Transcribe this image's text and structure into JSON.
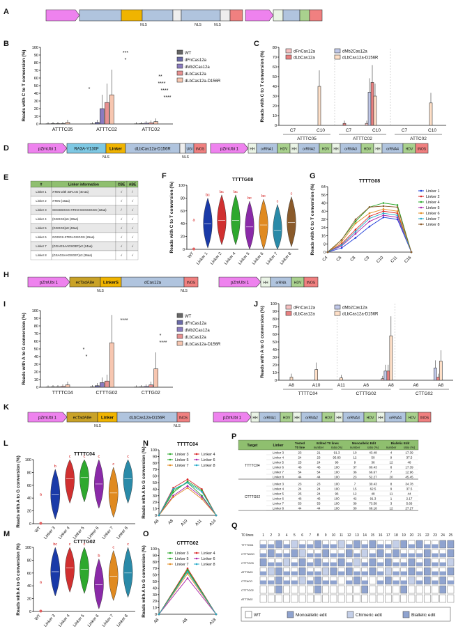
{
  "panels": {
    "A": "A",
    "B": "B",
    "C": "C",
    "D": "D",
    "E": "E",
    "F": "F",
    "G": "G",
    "H": "H",
    "I": "I",
    "J": "J",
    "K": "K",
    "L": "L",
    "M": "M",
    "N": "N",
    "O": "O",
    "P": "P",
    "Q": "Q"
  },
  "construct_A": {
    "nls": "NLS"
  },
  "construct_D": {
    "promoter": "pZmUbi 1",
    "deaminase": "RA3A-Y130F",
    "linker": "Linker",
    "cas": "dLbCas12a-D156R",
    "ugi": "UGI",
    "terminator": "tNOS",
    "promoter2": "pZmUbi 1",
    "hh": "HH",
    "hdv": "HDV",
    "crrnas": [
      "orRNA1",
      "orRNA2",
      "orRNA3",
      "orRNA4"
    ],
    "nls": "NLS"
  },
  "construct_H": {
    "promoter": "pZmUbi 1",
    "deaminase": "ecTadA8e",
    "linker": "LinkerS",
    "cas": "dCas12a",
    "terminator": "tNOS",
    "promoter2": "pZmUbi 1",
    "hh": "HH",
    "crrna": "orRNA",
    "hdv": "HDV",
    "nls": "NLS"
  },
  "construct_K": {
    "promoter": "pZmUbi 1",
    "deaminase": "ecTadA8e",
    "linker": "Linker",
    "cas": "dLbCas12a-D156R",
    "terminator": "tNOS",
    "promoter2": "pZmUbi 1",
    "hh": "HH",
    "hdv": "HDV",
    "crrnas": [
      "orRNA1",
      "orRNA2",
      "orRNA3",
      "orRNA4"
    ],
    "nls": "NLS"
  },
  "legend_B": [
    "WT",
    "dFnCas12a",
    "dMb2Cas12a",
    "dLbCas12a",
    "dLbCas12a-D156R"
  ],
  "legend_C": [
    "dFnCas12a",
    "dMb2Cas12a",
    "dLbCas12a",
    "dLbCas12a-D156R"
  ],
  "ylabel_CT": "Reads with C to T conversion (%)",
  "ylabel_AG": "Reads with A to G conversion (%)",
  "sig": {
    "s1": "*",
    "s3": "***",
    "s4": "****",
    "s2": "**"
  },
  "linker_table": {
    "headers": [
      "#",
      "Linker information",
      "CBE",
      "ABE"
    ],
    "rows": [
      [
        "Linker 1",
        "XTEN with 3xFLAG (40 aa)",
        "√",
        "/"
      ],
      [
        "Linker 2",
        "XTEN (16aa)",
        "√",
        "√"
      ],
      [
        "Linker 3",
        "SGGSSGGS-XTEN-SGGSSGGS (32aa)",
        "/",
        "√"
      ],
      [
        "Linker 4",
        "(GGGGS)x6 (30aa)",
        "√",
        "√"
      ],
      [
        "Linker 5",
        "(GGGGS)x8 (40aa)",
        "√",
        "√"
      ],
      [
        "Linker 6",
        "GGGGS-XTEN-GGGGS (26aa)",
        "√",
        "√"
      ],
      [
        "Linker 7",
        "(GGAGSAAGSGEF)x2 (24aa)",
        "√",
        "√"
      ],
      [
        "Linker 8",
        "(GSAGSAAGSGEF)x3 (36aa)",
        "√",
        "√"
      ]
    ]
  },
  "G_title": "TTTTG08",
  "G_legend": [
    "Linker 1",
    "Linker 2",
    "Linker 4",
    "Linker 5",
    "Linker 6",
    "Linker 7",
    "Linker 8"
  ],
  "N_title": "TTTTC04",
  "O_title": "CTTTG02",
  "NO_legend": [
    "Linker 3",
    "Linker 4",
    "Linker 5",
    "Linker 6",
    "Linker 7",
    "Linker 8"
  ],
  "table_P": {
    "headers": [
      "Target",
      "Linker",
      "Tested T0 line",
      "Edited T0 lines number",
      "Edited T0 lines ratio (%)",
      "Monoallelic Edit number",
      "Monoallelic Edit ratio (%)",
      "Biallelic Edit number",
      "Biallelic Edit ratio (%)"
    ],
    "head_top": {
      "tested": "Tested",
      "t0": "T0 line",
      "edited": "Edited T0 lines",
      "mono": "Monoallelic Edit",
      "bi": "Biallelic Edit",
      "number": "number",
      "ratio": "ratio (%)"
    },
    "groups": [
      {
        "target": "TTTTC04",
        "rows": [
          [
            "Linker 3",
            "23",
            "21",
            "91.3",
            "10",
            "43.48",
            "4",
            "17.39"
          ],
          [
            "Linker 4",
            "24",
            "23",
            "95.83",
            "12",
            "50",
            "9",
            "37.5"
          ],
          [
            "Linker 5",
            "25",
            "24",
            "96",
            "9",
            "36",
            "12",
            "48"
          ],
          [
            "Linker 6",
            "46",
            "46",
            "100",
            "37",
            "80.43",
            "8",
            "17.39"
          ],
          [
            "Linker 7",
            "54",
            "54",
            "100",
            "36",
            "66.67",
            "7",
            "12.96"
          ],
          [
            "Linker 8",
            "44",
            "44",
            "100",
            "23",
            "52.27",
            "20",
            "45.45"
          ]
        ]
      },
      {
        "target": "CTTTG02",
        "rows": [
          [
            "Linker 3",
            "23",
            "23",
            "100",
            "7",
            "30.43",
            "8",
            "34.78"
          ],
          [
            "Linker 4",
            "24",
            "24",
            "100",
            "15",
            "62.5",
            "9",
            "37.5"
          ],
          [
            "Linker 5",
            "25",
            "24",
            "96",
            "12",
            "48",
            "11",
            "44"
          ],
          [
            "Linker 6",
            "46",
            "46",
            "100",
            "42",
            "91.3",
            "1",
            "2.17"
          ],
          [
            "Linker 7",
            "53",
            "53",
            "100",
            "39",
            "73.58",
            "3",
            "5.66"
          ],
          [
            "Linker 8",
            "44",
            "44",
            "100",
            "30",
            "68.18",
            "12",
            "27.27"
          ]
        ]
      }
    ]
  },
  "Q": {
    "t0_label": "T0 lines",
    "cols": [
      "1",
      "2",
      "3",
      "4",
      "5",
      "6",
      "7",
      "8",
      "9",
      "10",
      "11",
      "12",
      "13",
      "14",
      "15",
      "16",
      "17",
      "18",
      "19",
      "20",
      "21",
      "22",
      "23",
      "24",
      "25"
    ],
    "rows": [
      "TTTTG04",
      "CTTTAGO",
      "CTTTG03",
      "ATTTA03",
      "CTTACO",
      "CTTTG02",
      "ATTTA02"
    ],
    "legend": [
      "WT",
      "Monoallelic edit",
      "Chimeric edit",
      "Biallelic edit"
    ]
  },
  "chart_data": [
    {
      "panel": "B",
      "type": "bar",
      "categories": [
        "ATTTC05",
        "ATTTC02",
        "ATTC02"
      ],
      "series": [
        {
          "name": "WT",
          "values": [
            0.3,
            0.3,
            0.3
          ]
        },
        {
          "name": "dFnCas12a",
          "values": [
            0.5,
            2,
            0.5
          ]
        },
        {
          "name": "dMb2Cas12a",
          "values": [
            0.5,
            20,
            1
          ]
        },
        {
          "name": "dLbCas12a",
          "values": [
            0.5,
            28,
            1.5
          ]
        },
        {
          "name": "dLbCas12a-D156R",
          "values": [
            2,
            38,
            3
          ]
        }
      ],
      "ylabel": "Reads with C to T conversion (%)",
      "ylim": [
        0,
        100
      ],
      "yticks": [
        0,
        10,
        20,
        30,
        40,
        50,
        60,
        70,
        80,
        90,
        100
      ]
    },
    {
      "panel": "C",
      "type": "bar",
      "groups": [
        "ATTTC05",
        "ATTTC02",
        "ATTC02"
      ],
      "categories": [
        "C7",
        "C10",
        "C7",
        "C10",
        "C7",
        "C10"
      ],
      "series": [
        {
          "name": "dFnCas12a",
          "values": [
            0,
            0,
            0,
            2,
            0,
            0
          ]
        },
        {
          "name": "dMb2Cas12a",
          "values": [
            0,
            0,
            0,
            34,
            0,
            0
          ]
        },
        {
          "name": "dLbCas12a",
          "values": [
            0,
            0,
            2,
            44,
            0,
            0
          ]
        },
        {
          "name": "dLbCas12a-D156R",
          "values": [
            0,
            40,
            0,
            30,
            0,
            23
          ]
        }
      ],
      "ylabel": "Reads with C to T conversion (%)",
      "ylim": [
        0,
        80
      ],
      "yticks": [
        0,
        10,
        20,
        30,
        40,
        50,
        60,
        70,
        80
      ]
    },
    {
      "panel": "F",
      "type": "violin",
      "title": "TTTTG08",
      "categories": [
        "WT",
        "Linker 1",
        "Linker 2",
        "Linker 4",
        "Linker 5",
        "Linker 6",
        "Linker 7",
        "Linker 8"
      ],
      "medians": [
        0.5,
        40,
        45,
        45,
        35,
        38,
        30,
        42
      ],
      "letters": [
        "a",
        "bc",
        "bc",
        "bc",
        "bc",
        "bc",
        "c",
        "c"
      ],
      "ylim": [
        0,
        100
      ],
      "yticks": [
        0,
        20,
        40,
        60,
        80,
        100
      ]
    },
    {
      "panel": "G",
      "type": "line",
      "title": "TTTTG08",
      "x": [
        "C4",
        "C6",
        "C8",
        "C9",
        "C10",
        "C11",
        "C16"
      ],
      "series": [
        {
          "name": "Linker 1",
          "values": [
            0,
            4,
            14,
            25,
            34,
            32,
            0
          ]
        },
        {
          "name": "Linker 2",
          "values": [
            0,
            8,
            22,
            35,
            40,
            38,
            0
          ]
        },
        {
          "name": "Linker 4",
          "values": [
            0,
            12,
            30,
            44,
            48,
            46,
            0
          ]
        },
        {
          "name": "Linker 5",
          "values": [
            0,
            6,
            18,
            30,
            36,
            34,
            0
          ]
        },
        {
          "name": "Linker 6",
          "values": [
            0,
            10,
            28,
            38,
            42,
            40,
            0
          ]
        },
        {
          "name": "Linker 7",
          "values": [
            0,
            7,
            20,
            33,
            38,
            36,
            0
          ]
        },
        {
          "name": "Linker 8",
          "values": [
            0,
            12,
            32,
            44,
            45,
            44,
            0
          ]
        }
      ],
      "ylim": [
        0,
        64
      ],
      "yticks": [
        0,
        8,
        16,
        24,
        32,
        40,
        48,
        56,
        64
      ]
    },
    {
      "panel": "I",
      "type": "bar",
      "categories": [
        "TTTTC04",
        "CTTTG02",
        "CTTG02"
      ],
      "series": [
        {
          "name": "WT",
          "values": [
            0.3,
            0.5,
            0.3
          ]
        },
        {
          "name": "dFnCas12a",
          "values": [
            0.5,
            2,
            0.5
          ]
        },
        {
          "name": "dMb2Cas12a",
          "values": [
            0.5,
            6,
            1
          ]
        },
        {
          "name": "dLbCas12a",
          "values": [
            1,
            8,
            3
          ]
        },
        {
          "name": "dLbCas12a-D156R",
          "values": [
            3,
            58,
            24
          ]
        }
      ],
      "ylabel": "Reads with A to G conversion (%)",
      "ylim": [
        0,
        100
      ],
      "yticks": [
        0,
        10,
        20,
        30,
        40,
        50,
        60,
        70,
        80,
        90,
        100
      ]
    },
    {
      "panel": "J",
      "type": "bar",
      "groups": [
        "TTTTC04",
        "CTTTG02",
        "CTTG02"
      ],
      "categories": [
        "A8",
        "A10",
        "A11",
        "A6",
        "A8",
        "A6",
        "A8"
      ],
      "series": [
        {
          "name": "dFnCas12a",
          "values": [
            0,
            0,
            0,
            0,
            2,
            0,
            0
          ]
        },
        {
          "name": "dMb2Cas12a",
          "values": [
            0,
            0,
            0,
            0,
            12,
            0,
            16
          ]
        },
        {
          "name": "dLbCas12a",
          "values": [
            0,
            0,
            0,
            0,
            12,
            0,
            4
          ]
        },
        {
          "name": "dLbCas12a-D156R",
          "values": [
            4,
            14,
            3,
            0,
            58,
            0,
            25
          ]
        }
      ],
      "ylabel": "Reads with A to G conversion (%)",
      "ylim": [
        0,
        100
      ],
      "yticks": [
        0,
        10,
        20,
        30,
        40,
        50,
        60,
        70,
        80,
        90,
        100
      ]
    },
    {
      "panel": "L",
      "type": "violin",
      "title": "TTTTC04",
      "categories": [
        "WT",
        "Linker 3",
        "Linker 4",
        "Linker 5",
        "Linker 6",
        "Linker 7",
        "Linker 8"
      ],
      "medians": [
        0.5,
        45,
        70,
        72,
        62,
        48,
        70
      ],
      "letters": [
        "a",
        "b",
        "c",
        "c",
        "c",
        "c",
        "c"
      ],
      "ylim": [
        0,
        100
      ],
      "yticks": [
        0,
        20,
        40,
        60,
        80,
        100
      ]
    },
    {
      "panel": "M",
      "type": "violin",
      "title": "CTTTG02",
      "categories": [
        "WT",
        "Linker 3",
        "Linker 4",
        "Linker 5",
        "Linker 6",
        "Linker 7",
        "Linker 8"
      ],
      "medians": [
        0.5,
        62,
        68,
        66,
        42,
        55,
        60
      ],
      "letters": [
        "a",
        "bc",
        "c",
        "c",
        "b",
        "c",
        "c"
      ],
      "ylim": [
        0,
        100
      ],
      "yticks": [
        0,
        20,
        40,
        60,
        80,
        100
      ]
    },
    {
      "panel": "N",
      "type": "line",
      "title": "TTTTC04",
      "x": [
        "A6",
        "A8",
        "A10",
        "A11",
        "A14"
      ],
      "series": [
        {
          "name": "Linker 3",
          "values": [
            0,
            38,
            50,
            30,
            0
          ]
        },
        {
          "name": "Linker 4",
          "values": [
            0,
            42,
            55,
            40,
            0
          ]
        },
        {
          "name": "Linker 5",
          "values": [
            0,
            35,
            52,
            38,
            0
          ]
        },
        {
          "name": "Linker 6",
          "values": [
            0,
            30,
            45,
            28,
            0
          ]
        },
        {
          "name": "Linker 7",
          "values": [
            0,
            28,
            42,
            25,
            0
          ]
        },
        {
          "name": "Linker 8",
          "values": [
            0,
            40,
            50,
            36,
            0
          ]
        }
      ],
      "ylim": [
        0,
        100
      ],
      "yticks": [
        0,
        10,
        20,
        30,
        40,
        50,
        60,
        70,
        80,
        90,
        100
      ]
    },
    {
      "panel": "O",
      "type": "line",
      "title": "CTTTG02",
      "x": [
        "A6",
        "A8",
        "A18"
      ],
      "series": [
        {
          "name": "Linker 3",
          "values": [
            0,
            66,
            0
          ]
        },
        {
          "name": "Linker 4",
          "values": [
            0,
            70,
            0
          ]
        },
        {
          "name": "Linker 5",
          "values": [
            0,
            68,
            0
          ]
        },
        {
          "name": "Linker 6",
          "values": [
            0,
            55,
            0
          ]
        },
        {
          "name": "Linker 7",
          "values": [
            0,
            62,
            0
          ]
        },
        {
          "name": "Linker 8",
          "values": [
            0,
            65,
            0
          ]
        }
      ],
      "ylim": [
        0,
        100
      ],
      "yticks": [
        0,
        10,
        20,
        30,
        40,
        50,
        60,
        70,
        80,
        90,
        100
      ]
    }
  ]
}
